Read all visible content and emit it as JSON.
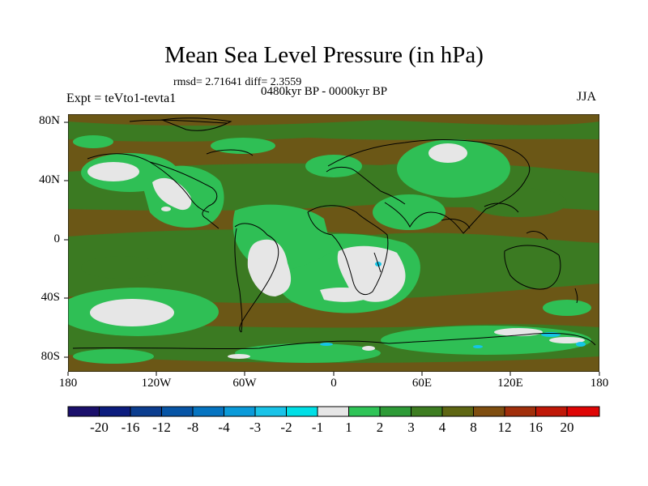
{
  "header": {
    "title": "Mean Sea Level Pressure (in hPa)",
    "stats": "rmsd= 2.71641 diff= 2.3559",
    "period": "0480kyr BP - 0000kyr BP",
    "experiment": "Expt = teVto1-tevta1",
    "season": "JJA"
  },
  "axes": {
    "lat_labels": [
      "80N",
      "40N",
      "0",
      "40S",
      "80S"
    ],
    "lon_labels": [
      "180",
      "120W",
      "60W",
      "0",
      "60E",
      "120E",
      "180"
    ]
  },
  "colorbar": {
    "labels": [
      "-20",
      "-16",
      "-12",
      "-8",
      "-4",
      "-3",
      "-2",
      "-1",
      "1",
      "2",
      "3",
      "4",
      "8",
      "12",
      "16",
      "20"
    ],
    "colors": [
      "#1a0f6b",
      "#0c1c7e",
      "#0b3d8f",
      "#0755a6",
      "#0574c1",
      "#0a9ad9",
      "#19c3e8",
      "#00dfe6",
      "#e6e6e6",
      "#2fc457",
      "#2d9b37",
      "#3d7d21",
      "#5e6613",
      "#7f4e10",
      "#a12f0b",
      "#c01808",
      "#df0505"
    ]
  },
  "colors": {
    "background": "#6b5716",
    "moderate": "#3b7a22",
    "green": "#2fbf55",
    "neutral": "#e6e6e6",
    "cyan": "#15c5e6",
    "coast": "#000000"
  }
}
